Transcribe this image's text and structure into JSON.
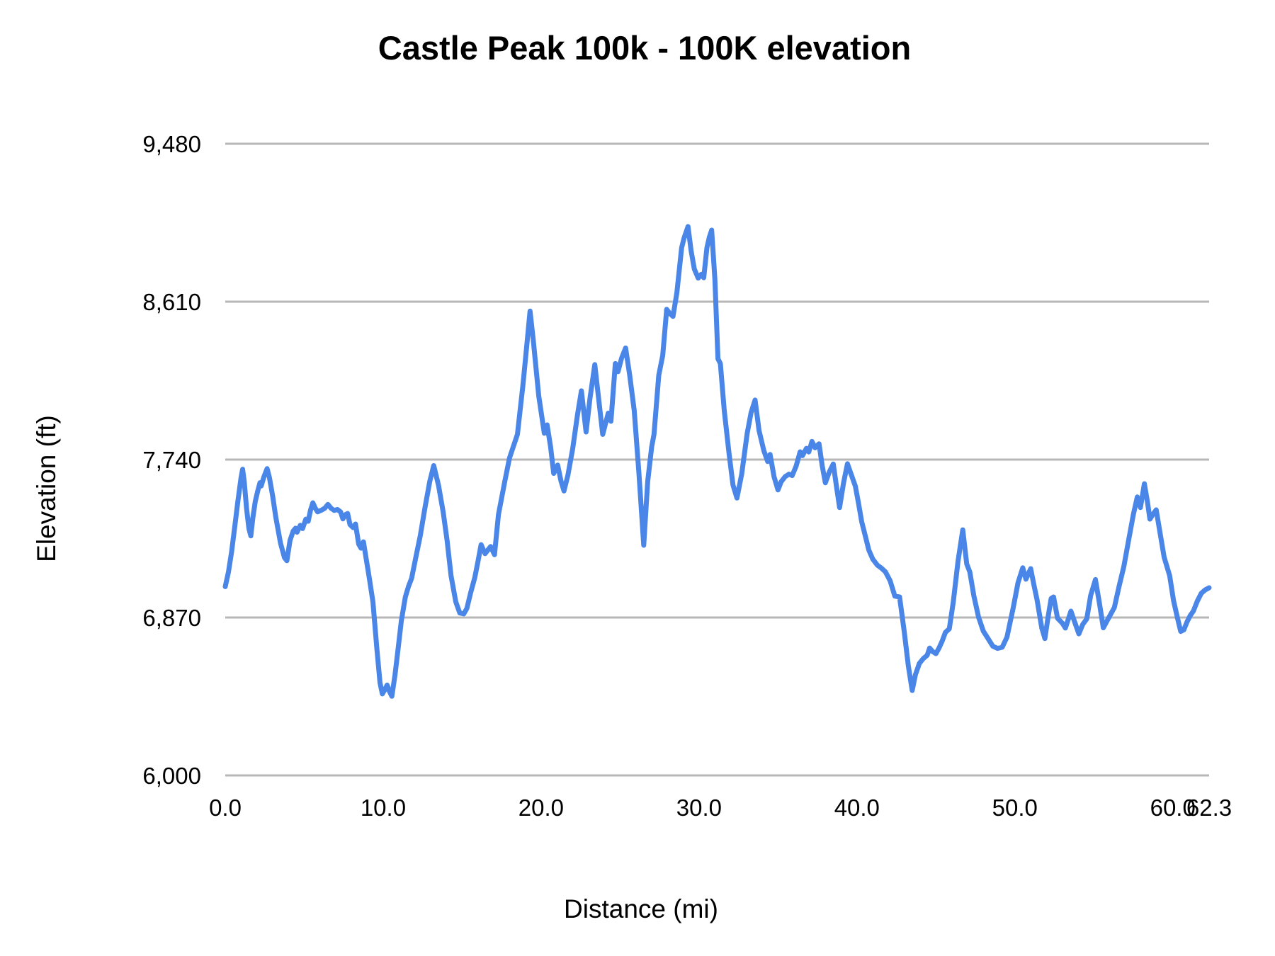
{
  "chart": {
    "title": "Castle Peak 100k - 100K elevation",
    "y_axis_title": "Elevation (ft)",
    "x_axis_title": "Distance (mi)"
  },
  "chart_data": {
    "type": "line",
    "title": "Castle Peak 100k - 100K elevation",
    "xlabel": "Distance (mi)",
    "ylabel": "Elevation (ft)",
    "xlim": [
      0,
      62.3
    ],
    "ylim": [
      6000,
      9480
    ],
    "grid": "horizontal-only",
    "legend": "none",
    "line_color": "#4a86e8",
    "gridline_color": "#b7b7b7",
    "x_ticks": [
      {
        "label": "0.0",
        "mile": 0
      },
      {
        "label": "10.0",
        "mile": 10
      },
      {
        "label": "20.0",
        "mile": 20
      },
      {
        "label": "30.0",
        "mile": 30
      },
      {
        "label": "40.0",
        "mile": 40
      },
      {
        "label": "50.0",
        "mile": 50
      },
      {
        "label": "60.0",
        "mile": 60
      },
      {
        "label": "62.3",
        "mile": 62.3
      }
    ],
    "y_ticks": [
      {
        "label": "6,000",
        "ft": 6000
      },
      {
        "label": "6,870",
        "ft": 6870
      },
      {
        "label": "7,740",
        "ft": 7740
      },
      {
        "label": "8,610",
        "ft": 8610
      },
      {
        "label": "9,480",
        "ft": 9480
      }
    ],
    "series": [
      {
        "name": "elevation",
        "units": [
          "mile",
          "ft"
        ],
        "points": [
          [
            0,
            7040
          ],
          [
            0.2,
            7120
          ],
          [
            0.4,
            7230
          ],
          [
            0.6,
            7370
          ],
          [
            0.8,
            7510
          ],
          [
            1.0,
            7640
          ],
          [
            1.1,
            7687
          ],
          [
            1.2,
            7620
          ],
          [
            1.35,
            7470
          ],
          [
            1.5,
            7360
          ],
          [
            1.62,
            7320
          ],
          [
            1.75,
            7420
          ],
          [
            1.9,
            7510
          ],
          [
            2.05,
            7565
          ],
          [
            2.2,
            7613
          ],
          [
            2.28,
            7595
          ],
          [
            2.45,
            7645
          ],
          [
            2.65,
            7690
          ],
          [
            2.8,
            7640
          ],
          [
            3.0,
            7540
          ],
          [
            3.2,
            7424
          ],
          [
            3.5,
            7280
          ],
          [
            3.75,
            7200
          ],
          [
            3.9,
            7183
          ],
          [
            4.1,
            7294
          ],
          [
            4.3,
            7346
          ],
          [
            4.45,
            7362
          ],
          [
            4.55,
            7340
          ],
          [
            4.75,
            7378
          ],
          [
            4.9,
            7360
          ],
          [
            5.1,
            7412
          ],
          [
            5.25,
            7400
          ],
          [
            5.4,
            7462
          ],
          [
            5.55,
            7502
          ],
          [
            5.7,
            7472
          ],
          [
            5.85,
            7452
          ],
          [
            6.1,
            7462
          ],
          [
            6.3,
            7472
          ],
          [
            6.5,
            7493
          ],
          [
            6.7,
            7472
          ],
          [
            6.9,
            7460
          ],
          [
            7.1,
            7465
          ],
          [
            7.3,
            7452
          ],
          [
            7.45,
            7413
          ],
          [
            7.6,
            7436
          ],
          [
            7.75,
            7443
          ],
          [
            7.9,
            7382
          ],
          [
            8.1,
            7365
          ],
          [
            8.25,
            7385
          ],
          [
            8.45,
            7274
          ],
          [
            8.6,
            7252
          ],
          [
            8.75,
            7287
          ],
          [
            8.95,
            7180
          ],
          [
            9.1,
            7099
          ],
          [
            9.35,
            6956
          ],
          [
            9.6,
            6700
          ],
          [
            9.8,
            6510
          ],
          [
            9.95,
            6449
          ],
          [
            10.1,
            6472
          ],
          [
            10.25,
            6498
          ],
          [
            10.4,
            6462
          ],
          [
            10.55,
            6436
          ],
          [
            10.75,
            6555
          ],
          [
            10.95,
            6700
          ],
          [
            11.15,
            6852
          ],
          [
            11.4,
            6982
          ],
          [
            11.6,
            7040
          ],
          [
            11.8,
            7086
          ],
          [
            12.1,
            7216
          ],
          [
            12.35,
            7320
          ],
          [
            12.65,
            7476
          ],
          [
            12.95,
            7619
          ],
          [
            13.2,
            7707
          ],
          [
            13.5,
            7600
          ],
          [
            13.8,
            7450
          ],
          [
            14.05,
            7294
          ],
          [
            14.3,
            7099
          ],
          [
            14.6,
            6956
          ],
          [
            14.85,
            6895
          ],
          [
            15.1,
            6890
          ],
          [
            15.3,
            6920
          ],
          [
            15.55,
            7010
          ],
          [
            15.8,
            7090
          ],
          [
            16.0,
            7177
          ],
          [
            16.2,
            7271
          ],
          [
            16.45,
            7222
          ],
          [
            16.8,
            7261
          ],
          [
            17.05,
            7216
          ],
          [
            17.3,
            7437
          ],
          [
            17.7,
            7619
          ],
          [
            18.0,
            7749
          ],
          [
            18.5,
            7879
          ],
          [
            18.85,
            8152
          ],
          [
            19.1,
            8373
          ],
          [
            19.3,
            8558
          ],
          [
            19.5,
            8400
          ],
          [
            19.65,
            8269
          ],
          [
            19.85,
            8090
          ],
          [
            20.05,
            7975
          ],
          [
            20.2,
            7885
          ],
          [
            20.38,
            7931
          ],
          [
            20.6,
            7810
          ],
          [
            20.8,
            7664
          ],
          [
            21.05,
            7710
          ],
          [
            21.25,
            7625
          ],
          [
            21.45,
            7567
          ],
          [
            21.7,
            7655
          ],
          [
            22.0,
            7800
          ],
          [
            22.3,
            7985
          ],
          [
            22.55,
            8119
          ],
          [
            22.85,
            7892
          ],
          [
            23.1,
            8080
          ],
          [
            23.4,
            8263
          ],
          [
            23.65,
            8070
          ],
          [
            23.9,
            7879
          ],
          [
            24.25,
            7996
          ],
          [
            24.42,
            7951
          ],
          [
            24.7,
            8269
          ],
          [
            24.87,
            8224
          ],
          [
            25.1,
            8300
          ],
          [
            25.35,
            8355
          ],
          [
            25.6,
            8210
          ],
          [
            25.9,
            8009
          ],
          [
            26.2,
            7660
          ],
          [
            26.5,
            7268
          ],
          [
            26.75,
            7620
          ],
          [
            27.0,
            7810
          ],
          [
            27.15,
            7879
          ],
          [
            27.45,
            8204
          ],
          [
            27.7,
            8314
          ],
          [
            27.95,
            8568
          ],
          [
            28.15,
            8545
          ],
          [
            28.35,
            8529
          ],
          [
            28.6,
            8660
          ],
          [
            28.9,
            8907
          ],
          [
            29.05,
            8960
          ],
          [
            29.3,
            9024
          ],
          [
            29.5,
            8890
          ],
          [
            29.7,
            8790
          ],
          [
            29.95,
            8740
          ],
          [
            30.15,
            8761
          ],
          [
            30.3,
            8742
          ],
          [
            30.5,
            8907
          ],
          [
            30.65,
            8965
          ],
          [
            30.8,
            9004
          ],
          [
            31.0,
            8737
          ],
          [
            31.2,
            8295
          ],
          [
            31.35,
            8269
          ],
          [
            31.6,
            8009
          ],
          [
            31.9,
            7775
          ],
          [
            32.15,
            7600
          ],
          [
            32.4,
            7528
          ],
          [
            32.7,
            7660
          ],
          [
            33.05,
            7886
          ],
          [
            33.3,
            8000
          ],
          [
            33.55,
            8068
          ],
          [
            33.8,
            7900
          ],
          [
            34.1,
            7790
          ],
          [
            34.35,
            7729
          ],
          [
            34.5,
            7768
          ],
          [
            34.75,
            7645
          ],
          [
            35.0,
            7573
          ],
          [
            35.2,
            7618
          ],
          [
            35.45,
            7646
          ],
          [
            35.7,
            7660
          ],
          [
            35.9,
            7652
          ],
          [
            36.15,
            7705
          ],
          [
            36.4,
            7783
          ],
          [
            36.55,
            7762
          ],
          [
            36.8,
            7802
          ],
          [
            36.95,
            7782
          ],
          [
            37.15,
            7840
          ],
          [
            37.35,
            7805
          ],
          [
            37.6,
            7827
          ],
          [
            37.8,
            7705
          ],
          [
            38.0,
            7612
          ],
          [
            38.25,
            7672
          ],
          [
            38.5,
            7716
          ],
          [
            38.7,
            7595
          ],
          [
            38.9,
            7476
          ],
          [
            39.15,
            7612
          ],
          [
            39.4,
            7717
          ],
          [
            39.65,
            7655
          ],
          [
            39.9,
            7593
          ],
          [
            40.1,
            7500
          ],
          [
            40.3,
            7398
          ],
          [
            40.55,
            7312
          ],
          [
            40.75,
            7242
          ],
          [
            41.0,
            7192
          ],
          [
            41.3,
            7158
          ],
          [
            41.55,
            7142
          ],
          [
            41.8,
            7122
          ],
          [
            42.1,
            7073
          ],
          [
            42.4,
            6988
          ],
          [
            42.7,
            6983
          ],
          [
            43.0,
            6788
          ],
          [
            43.25,
            6605
          ],
          [
            43.5,
            6468
          ],
          [
            43.7,
            6554
          ],
          [
            43.95,
            6617
          ],
          [
            44.2,
            6644
          ],
          [
            44.45,
            6662
          ],
          [
            44.6,
            6702
          ],
          [
            44.8,
            6682
          ],
          [
            45.0,
            6671
          ],
          [
            45.2,
            6702
          ],
          [
            45.4,
            6741
          ],
          [
            45.6,
            6788
          ],
          [
            45.85,
            6808
          ],
          [
            46.1,
            6955
          ],
          [
            46.4,
            7180
          ],
          [
            46.7,
            7353
          ],
          [
            46.95,
            7165
          ],
          [
            47.15,
            7120
          ],
          [
            47.4,
            6990
          ],
          [
            47.7,
            6872
          ],
          [
            48.0,
            6795
          ],
          [
            48.3,
            6754
          ],
          [
            48.6,
            6712
          ],
          [
            48.9,
            6700
          ],
          [
            49.2,
            6706
          ],
          [
            49.5,
            6762
          ],
          [
            49.9,
            6925
          ],
          [
            50.2,
            7062
          ],
          [
            50.5,
            7144
          ],
          [
            50.7,
            7081
          ],
          [
            51.0,
            7139
          ],
          [
            51.2,
            7052
          ],
          [
            51.4,
            6969
          ],
          [
            51.7,
            6813
          ],
          [
            51.9,
            6754
          ],
          [
            52.1,
            6872
          ],
          [
            52.3,
            6975
          ],
          [
            52.45,
            6983
          ],
          [
            52.7,
            6866
          ],
          [
            53.0,
            6839
          ],
          [
            53.2,
            6812
          ],
          [
            53.55,
            6905
          ],
          [
            53.8,
            6842
          ],
          [
            54.05,
            6780
          ],
          [
            54.3,
            6832
          ],
          [
            54.55,
            6862
          ],
          [
            54.8,
            6992
          ],
          [
            55.1,
            7079
          ],
          [
            55.35,
            6952
          ],
          [
            55.6,
            6813
          ],
          [
            55.9,
            6862
          ],
          [
            56.3,
            6925
          ],
          [
            56.6,
            7042
          ],
          [
            56.9,
            7151
          ],
          [
            57.2,
            7295
          ],
          [
            57.5,
            7437
          ],
          [
            57.75,
            7534
          ],
          [
            57.95,
            7476
          ],
          [
            58.2,
            7607
          ],
          [
            58.4,
            7505
          ],
          [
            58.55,
            7412
          ],
          [
            58.75,
            7440
          ],
          [
            58.95,
            7463
          ],
          [
            59.2,
            7332
          ],
          [
            59.45,
            7202
          ],
          [
            59.8,
            7100
          ],
          [
            60.05,
            6962
          ],
          [
            60.3,
            6866
          ],
          [
            60.5,
            6793
          ],
          [
            60.7,
            6802
          ],
          [
            60.9,
            6846
          ],
          [
            61.1,
            6880
          ],
          [
            61.3,
            6905
          ],
          [
            61.55,
            6960
          ],
          [
            61.8,
            7003
          ],
          [
            62.05,
            7022
          ],
          [
            62.3,
            7034
          ]
        ]
      }
    ]
  }
}
